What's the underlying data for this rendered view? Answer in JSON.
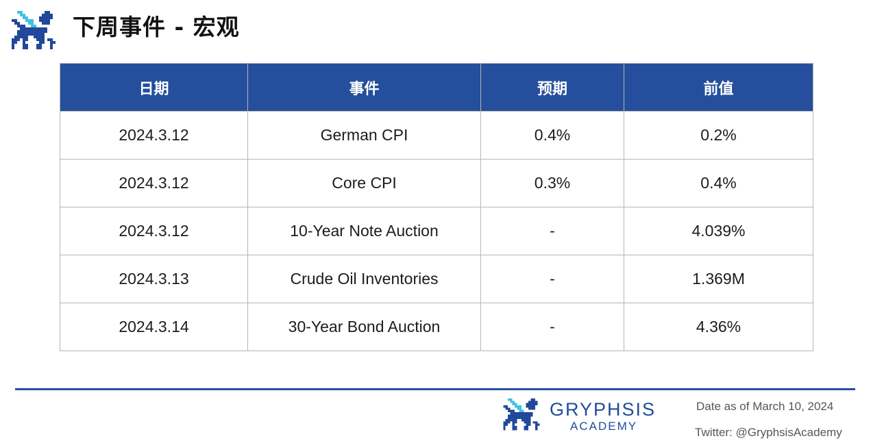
{
  "header": {
    "title": "下周事件 - 宏观",
    "logo_icon": "gryphon-pixel-logo-icon"
  },
  "table": {
    "columns": [
      "日期",
      "事件",
      "预期",
      "前值"
    ],
    "rows": [
      [
        "2024.3.12",
        "German CPI",
        "0.4%",
        "0.2%"
      ],
      [
        "2024.3.12",
        "Core CPI",
        "0.3%",
        "0.4%"
      ],
      [
        "2024.3.12",
        "10-Year Note Auction",
        "-",
        "4.039%"
      ],
      [
        "2024.3.13",
        "Crude Oil Inventories",
        "-",
        "1.369M"
      ],
      [
        "2024.3.14",
        "30-Year Bond Auction",
        "-",
        "4.36%"
      ]
    ]
  },
  "footer": {
    "brand_name": "GRYPHSIS",
    "brand_sub": "ACADEMY",
    "date_note": "Date as of March 10, 2024",
    "twitter_note": "Twitter: @GryphsisAcademy",
    "logo_icon": "gryphon-pixel-logo-icon"
  },
  "colors": {
    "header_blue": "#254f9c",
    "brand_blue": "#1f4c9a",
    "accent_cyan": "#3fc3e3",
    "border_gray": "#b5b5b5"
  }
}
